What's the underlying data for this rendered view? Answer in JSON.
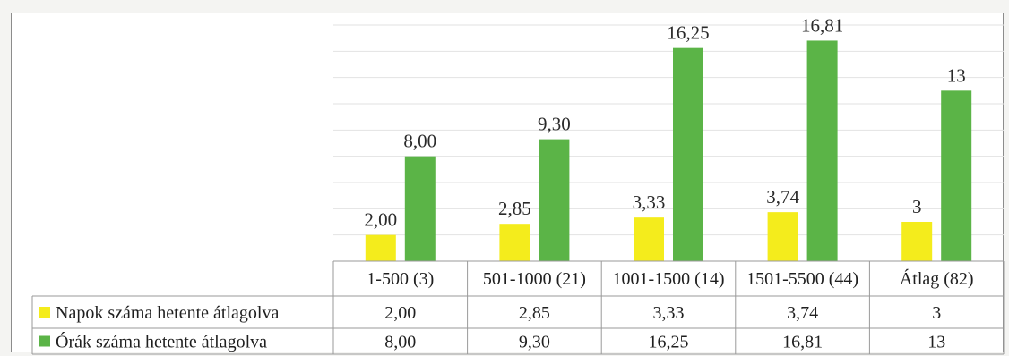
{
  "chart_data": {
    "type": "bar",
    "categories": [
      "1-500 (3)",
      "501-1000 (21)",
      "1001-1500 (14)",
      "1501-5500 (44)",
      "Átlag (82)"
    ],
    "series": [
      {
        "name": "Napok száma hetente átlagolva",
        "values": [
          2.0,
          2.85,
          3.33,
          3.74,
          3
        ],
        "labels": [
          "2,00",
          "2,85",
          "3,33",
          "3,74",
          "3"
        ],
        "color": "#f4ec1c"
      },
      {
        "name": "Órák száma hetente átlagolva",
        "values": [
          8.0,
          9.3,
          16.25,
          16.81,
          13
        ],
        "labels": [
          "8,00",
          "9,30",
          "16,25",
          "16,81",
          "13"
        ],
        "color": "#5bb447"
      }
    ],
    "ylim": [
      0,
      18
    ],
    "grid": true,
    "legend": "data-table"
  }
}
